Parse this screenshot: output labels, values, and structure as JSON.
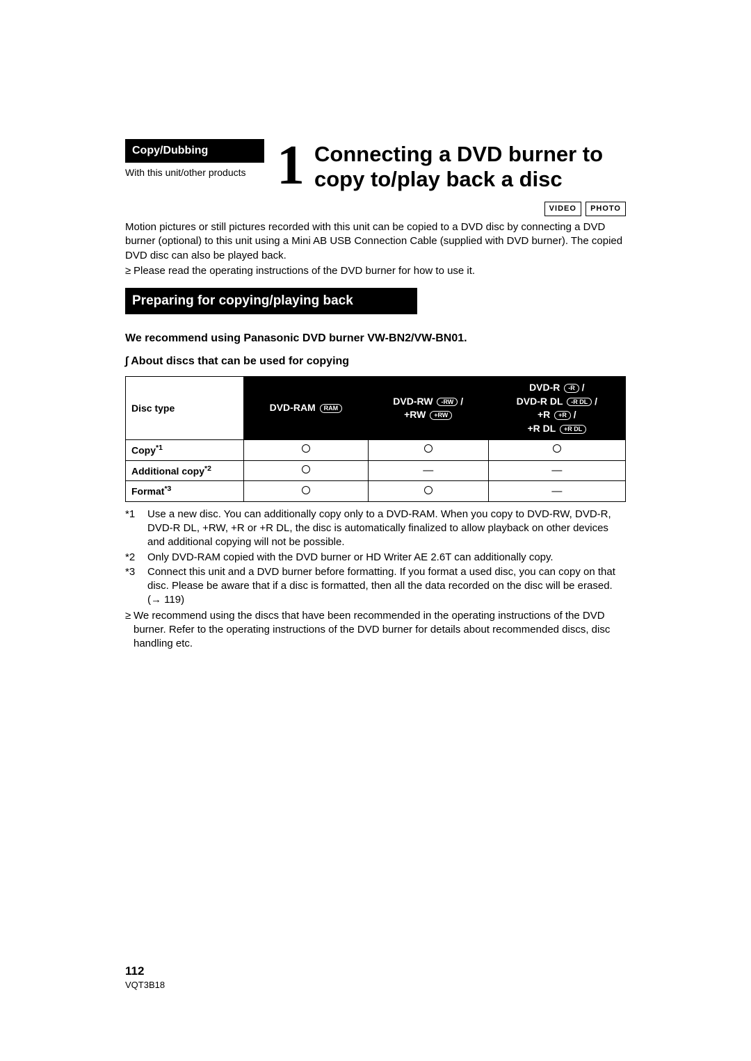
{
  "category": "Copy/Dubbing",
  "subcategory": "With this unit/other products",
  "chapter_number": "1",
  "title": "Connecting a DVD burner to copy to/play back a disc",
  "media_badges": [
    "VIDEO",
    "PHOTO"
  ],
  "intro_para": "Motion pictures or still pictures recorded with this unit can be copied to a DVD disc by connecting a DVD burner (optional) to this unit using a Mini AB USB Connection Cable (supplied with DVD burner). The copied DVD disc can also be played back.",
  "intro_bullet": "Please read the operating instructions of the DVD burner for how to use it.",
  "section_banner": "Preparing for copying/playing back",
  "recommend_line": "We recommend using Panasonic DVD burner VW-BN2/VW-BN01.",
  "about_heading_prefix": "∫",
  "about_heading": "About discs that can be used for copying",
  "table": {
    "header_label": "Disc type",
    "columns": [
      {
        "lines": [
          "DVD-RAM"
        ],
        "glyphs": [
          "RAM"
        ]
      },
      {
        "lines": [
          "DVD-RW",
          "+RW"
        ],
        "glyphs": [
          "-RW",
          "+RW"
        ]
      },
      {
        "lines": [
          "DVD-R",
          "DVD-R DL",
          "+R",
          "+R DL"
        ],
        "glyphs": [
          "-R",
          "-R DL",
          "+R",
          "+R DL"
        ]
      }
    ],
    "rows": [
      {
        "label": "Copy",
        "sup": "*1",
        "cells": [
          "○",
          "○",
          "○"
        ]
      },
      {
        "label": "Additional copy",
        "sup": "*2",
        "cells": [
          "○",
          "—",
          "—"
        ]
      },
      {
        "label": "Format",
        "sup": "*3",
        "cells": [
          "○",
          "○",
          "—"
        ]
      }
    ]
  },
  "footnotes": [
    {
      "label": "*1",
      "text": "Use a new disc. You can additionally copy only to a DVD-RAM. When you copy to DVD-RW, DVD-R, DVD-R DL, +RW, +R or +R DL, the disc is automatically finalized to allow playback on other devices and additional copying will not be possible."
    },
    {
      "label": "*2",
      "text": "Only DVD-RAM copied with the DVD burner or HD Writer AE 2.6T can additionally copy."
    },
    {
      "label": "*3",
      "text": "Connect this unit and a DVD burner before formatting. If you format a used disc, you can copy on that disc. Please be aware that if a disc is formatted, then all the data recorded on the disc will be erased. (→ 119)"
    }
  ],
  "closing_bullet": "We recommend using the discs that have been recommended in the operating instructions of the DVD burner. Refer to the operating instructions of the DVD burner for details about recommended discs, disc handling etc.",
  "page_number": "112",
  "doc_code": "VQT3B18"
}
